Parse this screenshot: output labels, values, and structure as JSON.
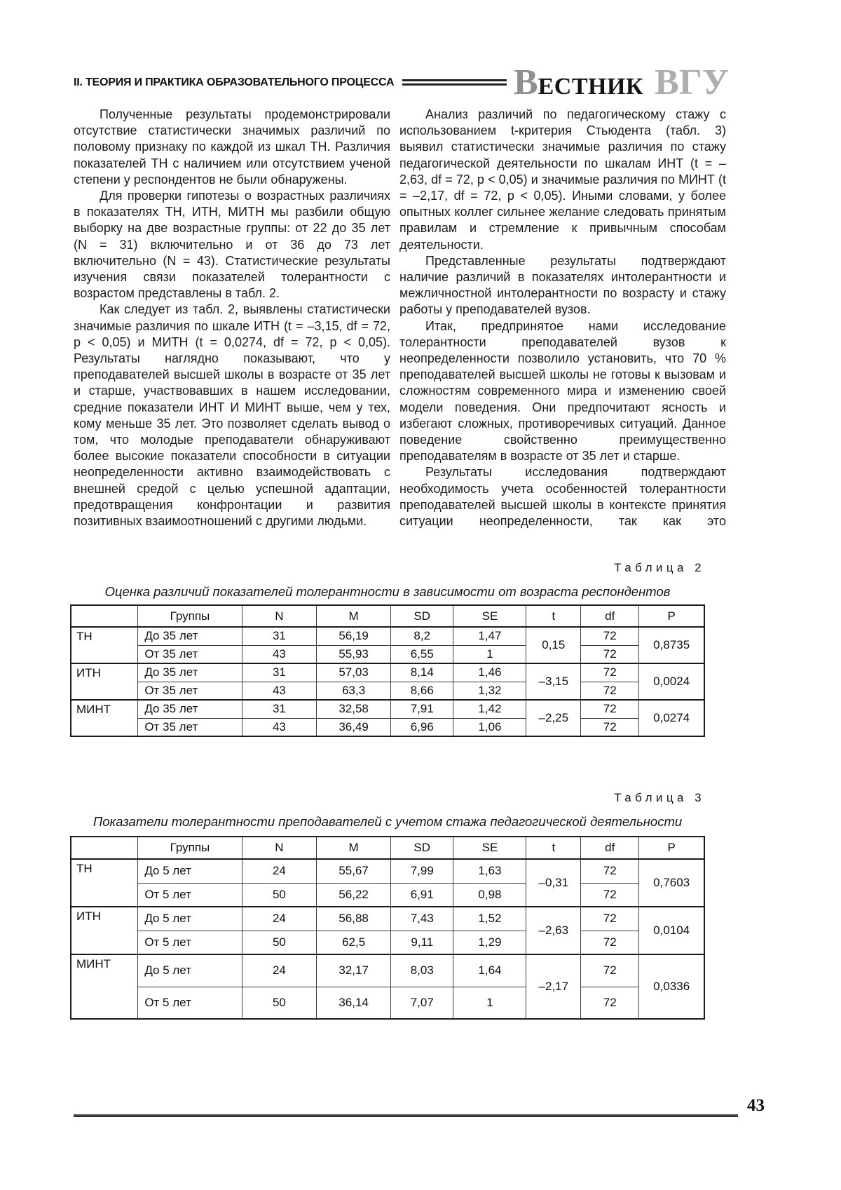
{
  "header": {
    "section_title": "II. ТЕОРИЯ И ПРАКТИКА ОБРАЗОВАТЕЛЬНОГО ПРОЦЕССА",
    "logo": {
      "initial": "В",
      "rest": "ЕСТНИК",
      "abbr": "ВГУ"
    }
  },
  "body": {
    "left_column": {
      "paragraphs": [
        "Полученные результаты продемонстрировали отсутствие статистически значимых различий по половому признаку по каждой из шкал ТН. Различия показателей ТН с наличием или отсутствием ученой степени у респондентов не были обнаружены.",
        "Для проверки гипотезы о возрастных различиях в показателях ТН, ИТН, МИТН мы разбили общую выборку на две возрастные группы: от 22 до 35 лет (N = 31) включительно и от 36 до 73 лет включительно (N = 43). Статистические результаты изучения связи показателей толерантности с возрастом представлены в табл. 2.",
        "Как следует из табл. 2, выявлены статистически значимые различия по шкале ИТН (t = –3,15, df = 72, p < 0,05) и МИТН (t = 0,0274, df = 72, p < 0,05). Результаты наглядно показывают, что у преподавателей высшей школы в возрасте от 35 лет и старше, участвовавших в нашем исследовании, средние показатели ИНТ И МИНТ выше, чем у тех, кому меньше 35 лет. Это позволяет сделать вывод о том, что молодые преподаватели обнаруживают более высокие показатели способности в ситуации неопределенности активно взаимодействовать с внешней средой с целью успешной адаптации, предотвращения конфронтации и развития позитивных взаимоотношений с другими людьми."
      ]
    },
    "right_column": {
      "paragraphs": [
        "Анализ различий по педагогическому стажу с использованием t-критерия Стьюдента (табл. 3) выявил статистически значимые различия по стажу педагогической деятельности по шкалам ИНТ (t = –2,63, df = 72, p < 0,05) и значимые различия по МИНТ (t = –2,17, df = 72, p < 0,05). Иными словами, у более опытных коллег сильнее желание следовать принятым правилам и стремление к привычным способам деятельности.",
        "Представленные результаты подтверждают наличие различий в показателях интолерантности и межличностной интолерантности по возрасту и стажу работы у преподавателей вузов.",
        "Итак, предпринятое нами исследование толерантности преподавателей вузов к неопределенности позволило установить, что 70 % преподавателей высшей школы не готовы к вызовам и сложностям современного мира и изменению своей модели поведения. Они предпочитают ясность и избегают сложных, противоречивых ситуаций. Данное поведение свойственно преимущественно преподавателям в возрасте от 35 лет и старше.",
        "Результаты исследования подтверждают необходимость учета особенностей  толерантности преподавателей высшей школы в контексте принятия ситуации неопределенности, так как это"
      ]
    }
  },
  "table2": {
    "label": "Таблица 2",
    "caption": "Оценка различий показателей толерантности в зависимости от возраста респондентов",
    "headers": [
      "",
      "Группы",
      "N",
      "M",
      "SD",
      "SE",
      "t",
      "df",
      "P"
    ],
    "groups": [
      {
        "scale": "ТН",
        "t": "0,15",
        "p": "0,8735",
        "rows": [
          {
            "group": "До 35 лет",
            "n": "31",
            "m": "56,19",
            "sd": "8,2",
            "se": "1,47",
            "df": "72"
          },
          {
            "group": "От 35 лет",
            "n": "43",
            "m": "55,93",
            "sd": "6,55",
            "se": "1",
            "df": "72"
          }
        ]
      },
      {
        "scale": "ИТН",
        "t": "–3,15",
        "p": "0,0024",
        "rows": [
          {
            "group": "До 35 лет",
            "n": "31",
            "m": "57,03",
            "sd": "8,14",
            "se": "1,46",
            "df": "72"
          },
          {
            "group": "От 35 лет",
            "n": "43",
            "m": "63,3",
            "sd": "8,66",
            "se": "1,32",
            "df": "72"
          }
        ]
      },
      {
        "scale": "МИНТ",
        "t": "–2,25",
        "p": "0,0274",
        "rows": [
          {
            "group": "До 35 лет",
            "n": "31",
            "m": "32,58",
            "sd": "7,91",
            "se": "1,42",
            "df": "72"
          },
          {
            "group": "От 35 лет",
            "n": "43",
            "m": "36,49",
            "sd": "6,96",
            "se": "1,06",
            "df": "72"
          }
        ]
      }
    ]
  },
  "table3": {
    "label": "Таблица 3",
    "caption": "Показатели толерантности преподавателей с учетом стажа педагогической деятельности",
    "headers": [
      "",
      "Группы",
      "N",
      "M",
      "SD",
      "SE",
      "t",
      "df",
      "P"
    ],
    "groups": [
      {
        "scale": "ТН",
        "t": "–0,31",
        "p": "0,7603",
        "rows": [
          {
            "group": "До 5 лет",
            "n": "24",
            "m": "55,67",
            "sd": "7,99",
            "se": "1,63",
            "df": "72"
          },
          {
            "group": "От 5 лет",
            "n": "50",
            "m": "56,22",
            "sd": "6,91",
            "se": "0,98",
            "df": "72"
          }
        ]
      },
      {
        "scale": "ИТН",
        "t": "–2,63",
        "p": "0,0104",
        "rows": [
          {
            "group": "До 5 лет",
            "n": "24",
            "m": "56,88",
            "sd": "7,43",
            "se": "1,52",
            "df": "72"
          },
          {
            "group": "От 5 лет",
            "n": "50",
            "m": "62,5",
            "sd": "9,11",
            "se": "1,29",
            "df": "72"
          }
        ]
      },
      {
        "scale": "МИНТ",
        "t": "–2,17",
        "p": "0,0336",
        "rows": [
          {
            "group": "До 5 лет",
            "n": "24",
            "m": "32,17",
            "sd": "8,03",
            "se": "1,64",
            "df": "72"
          },
          {
            "group": "От 5 лет",
            "n": "50",
            "m": "36,14",
            "sd": "7,07",
            "se": "1",
            "df": "72"
          }
        ]
      }
    ]
  },
  "footer": {
    "page_number": "43"
  }
}
